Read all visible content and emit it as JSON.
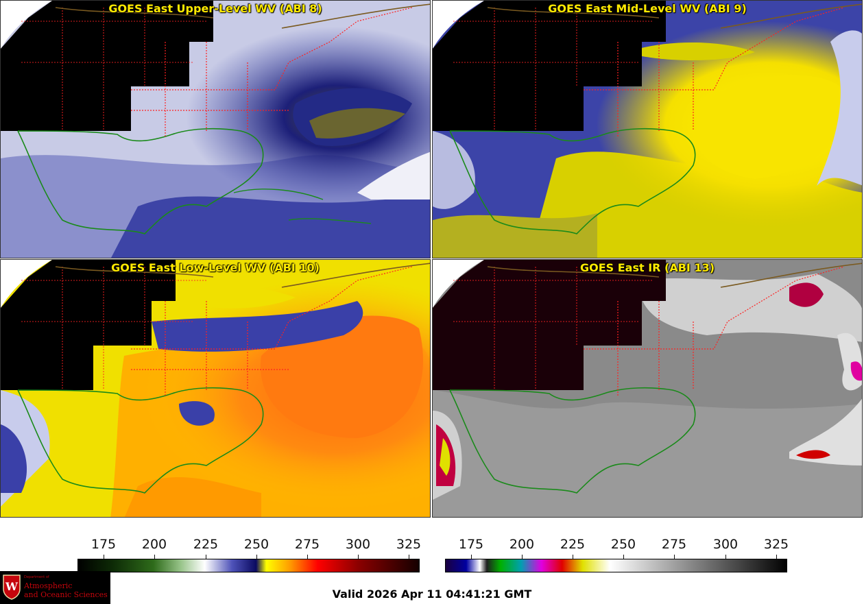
{
  "panels": [
    {
      "title": "GOES East Upper-Level WV (ABI 8)"
    },
    {
      "title": "GOES East Mid-Level WV (ABI 9)"
    },
    {
      "title": "GOES East Low-Level WV (ABI 10)"
    },
    {
      "title": "GOES East IR (ABI 13)"
    }
  ],
  "colorbars": [
    {
      "ticks": [
        "175",
        "200",
        "225",
        "250",
        "275",
        "300",
        "325"
      ]
    },
    {
      "ticks": [
        "175",
        "200",
        "225",
        "250",
        "275",
        "300",
        "325"
      ]
    }
  ],
  "footer": {
    "valid_time": "Valid 2026 Apr 11 04:41:21 GMT"
  },
  "logo": {
    "dept": "Department of",
    "line1": "Atmospheric",
    "line2": "and Oceanic Sciences",
    "seal_letter": "W"
  },
  "colors": {
    "title": "#ffea00",
    "state_borders": "#ff2020",
    "coastlines": "#1a8a1a",
    "country_borders": "#7a5a20"
  }
}
